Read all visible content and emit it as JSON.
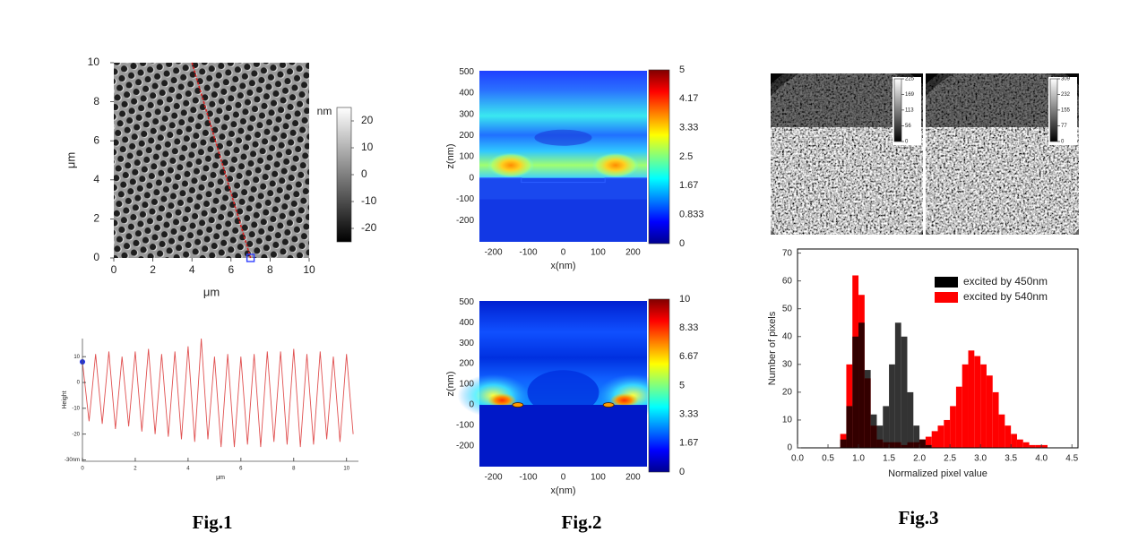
{
  "figures": [
    {
      "caption": "Fig.1"
    },
    {
      "caption": "Fig.2"
    },
    {
      "caption": "Fig.3"
    }
  ],
  "chart_data": [
    {
      "type": "image",
      "xlabel": "μm",
      "ylabel": "μm",
      "xlim": [
        0,
        10
      ],
      "ylim": [
        0,
        10
      ],
      "xticks": [
        0,
        2,
        4,
        6,
        8,
        10
      ],
      "yticks": [
        0,
        2,
        4,
        6,
        8,
        10
      ],
      "colorbar": {
        "label": "nm",
        "lim": [
          -25,
          25
        ],
        "ticks": [
          -20,
          -10,
          0,
          10,
          20
        ],
        "colormap": "gray"
      },
      "line_cut": {
        "x": [
          4,
          7
        ],
        "y": [
          10,
          0
        ],
        "color": "#d42020"
      }
    },
    {
      "type": "line",
      "xlabel": "μm",
      "ylabel": "Height",
      "xlim": [
        0,
        10.45
      ],
      "ylim": [
        -30.5,
        17
      ],
      "xticks": [
        0,
        2,
        4,
        6,
        8,
        10
      ],
      "yticks": [
        10,
        0,
        -10,
        -20,
        {
          "value": -30,
          "label": "-30nm"
        }
      ],
      "color": "#e05050",
      "x": [
        0,
        0.25,
        0.5,
        0.75,
        1,
        1.25,
        1.5,
        1.75,
        2,
        2.25,
        2.5,
        2.75,
        3,
        3.25,
        3.5,
        3.75,
        4,
        4.25,
        4.5,
        4.75,
        5,
        5.25,
        5.5,
        5.75,
        6,
        6.25,
        6.5,
        6.75,
        7,
        7.25,
        7.5,
        7.75,
        8,
        8.25,
        8.5,
        8.75,
        9,
        9.25,
        9.5,
        9.75,
        10,
        10.25
      ],
      "values": [
        8,
        -15,
        11,
        -16,
        12,
        -18,
        10,
        -17,
        12,
        -19,
        13,
        -20,
        11,
        -21,
        12,
        -22,
        14,
        -23,
        17,
        -22,
        10,
        -25,
        11,
        -25,
        10,
        -24,
        11,
        -25,
        12,
        -23,
        12,
        -24,
        13,
        -25,
        11,
        -24,
        12,
        -22,
        10,
        -23,
        11,
        -20
      ]
    },
    {
      "type": "heatmap",
      "xlabel": "x(nm)",
      "ylabel": "z(nm)",
      "xlim": [
        -240,
        240
      ],
      "ylim": [
        -300,
        505
      ],
      "xticks": [
        -200,
        -100,
        0,
        100,
        200
      ],
      "yticks": [
        -200,
        -100,
        0,
        100,
        200,
        300,
        400,
        500
      ],
      "colorbar": {
        "lim": [
          0,
          5
        ],
        "ticks": [
          0,
          0.833,
          1.67,
          2.5,
          3.33,
          4.17,
          5
        ],
        "colormap": "jet"
      }
    },
    {
      "type": "heatmap",
      "xlabel": "x(nm)",
      "ylabel": "z(nm)",
      "xlim": [
        -240,
        240
      ],
      "ylim": [
        -300,
        505
      ],
      "xticks": [
        -200,
        -100,
        0,
        100,
        200
      ],
      "yticks": [
        -200,
        -100,
        0,
        100,
        200,
        300,
        400,
        500
      ],
      "colorbar": {
        "lim": [
          0,
          10
        ],
        "ticks": [
          0,
          1.67,
          3.33,
          5,
          6.67,
          8.33,
          10
        ],
        "colormap": "jet"
      }
    },
    {
      "type": "image",
      "colorbar": {
        "lim": [
          0,
          225
        ],
        "ticks": [
          0,
          56,
          113,
          169,
          225
        ],
        "colormap": "gray"
      }
    },
    {
      "type": "image",
      "colorbar": {
        "lim": [
          0,
          309
        ],
        "ticks": [
          0,
          77,
          155,
          232,
          309
        ],
        "colormap": "gray"
      }
    },
    {
      "type": "histogram",
      "xlabel": "Normalized pixel value",
      "ylabel": "Number of pixels",
      "xlim": [
        0,
        4.6
      ],
      "ylim": [
        0,
        71.5
      ],
      "xticks": [
        {
          "value": 0,
          "label": "0.0"
        },
        0.5,
        {
          "value": 1,
          "label": "1.0"
        },
        1.5,
        {
          "value": 2,
          "label": "2.0"
        },
        2.5,
        {
          "value": 3,
          "label": "3.0"
        },
        3.5,
        {
          "value": 4,
          "label": "4.0"
        },
        4.5
      ],
      "yticks": [
        0,
        10,
        20,
        30,
        40,
        50,
        60,
        70
      ],
      "legend": "upper right",
      "bins": [
        0.7,
        0.8,
        0.9,
        1.0,
        1.1,
        1.2,
        1.3,
        1.4,
        1.5,
        1.6,
        1.7,
        1.8,
        1.9,
        2.0,
        2.1,
        2.2,
        2.3,
        2.4,
        2.5,
        2.6,
        2.7,
        2.8,
        2.9,
        3.0,
        3.1,
        3.2,
        3.3,
        3.4,
        3.5,
        3.6,
        3.7,
        3.8,
        3.9,
        4.0,
        4.1,
        4.2
      ],
      "series": [
        {
          "name": "excited by 450nm",
          "color": "#000000",
          "values": [
            3,
            15,
            40,
            45,
            28,
            12,
            8,
            15,
            30,
            45,
            40,
            20,
            8,
            3,
            1,
            0,
            0,
            0,
            0,
            0,
            0,
            0,
            0,
            0,
            0,
            0,
            0,
            0,
            0,
            0,
            0,
            0,
            0,
            0,
            0
          ]
        },
        {
          "name": "excited by 540nm",
          "color": "#ff0000",
          "values": [
            5,
            30,
            62,
            55,
            25,
            8,
            3,
            2,
            2,
            2,
            1,
            2,
            2,
            3,
            4,
            6,
            8,
            10,
            15,
            22,
            30,
            35,
            33,
            30,
            26,
            20,
            12,
            8,
            5,
            3,
            2,
            1,
            1,
            1,
            0
          ]
        }
      ]
    }
  ]
}
